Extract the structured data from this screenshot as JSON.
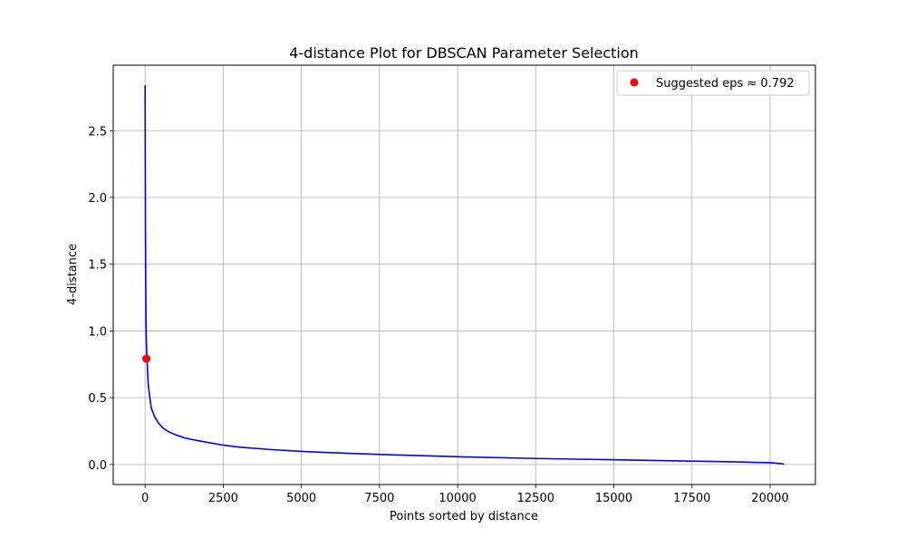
{
  "chart_data": {
    "type": "line",
    "title": "4-distance Plot for DBSCAN Parameter Selection",
    "xlabel": "Points sorted by distance",
    "ylabel": "4-distance",
    "xlim": [
      -1020,
      21450
    ],
    "ylim": [
      -0.15,
      2.99
    ],
    "xticks": [
      0,
      2500,
      5000,
      7500,
      10000,
      12500,
      15000,
      17500,
      20000
    ],
    "xtick_labels": [
      "0",
      "2500",
      "5000",
      "7500",
      "10000",
      "12500",
      "15000",
      "17500",
      "20000"
    ],
    "yticks": [
      0.0,
      0.5,
      1.0,
      1.5,
      2.0,
      2.5
    ],
    "ytick_labels": [
      "0.0",
      "0.5",
      "1.0",
      "1.5",
      "2.0",
      "2.5"
    ],
    "grid": true,
    "legend_position": "top-right",
    "series": [
      {
        "color": "#0000ff",
        "x": [
          0,
          5,
          10,
          20,
          30,
          40,
          50,
          75,
          100,
          150,
          200,
          300,
          400,
          500,
          600,
          700,
          800,
          1000,
          1250,
          1500,
          2000,
          2500,
          3000,
          4000,
          5000,
          6000,
          7500,
          10000,
          12500,
          15000,
          17500,
          19000,
          19500,
          20000,
          20200,
          20400,
          20450
        ],
        "y": [
          2.84,
          2.3,
          1.8,
          1.35,
          1.05,
          0.93,
          0.85,
          0.72,
          0.6,
          0.5,
          0.42,
          0.36,
          0.32,
          0.29,
          0.268,
          0.252,
          0.24,
          0.22,
          0.2,
          0.187,
          0.165,
          0.145,
          0.13,
          0.112,
          0.098,
          0.088,
          0.075,
          0.058,
          0.045,
          0.035,
          0.025,
          0.019,
          0.016,
          0.013,
          0.01,
          0.005,
          0.001
        ]
      },
      {
        "name": "Suggested eps ≈ 0.792",
        "color": "#ff0000",
        "marker": "circle",
        "x": [
          40
        ],
        "y": [
          0.792
        ]
      }
    ]
  }
}
